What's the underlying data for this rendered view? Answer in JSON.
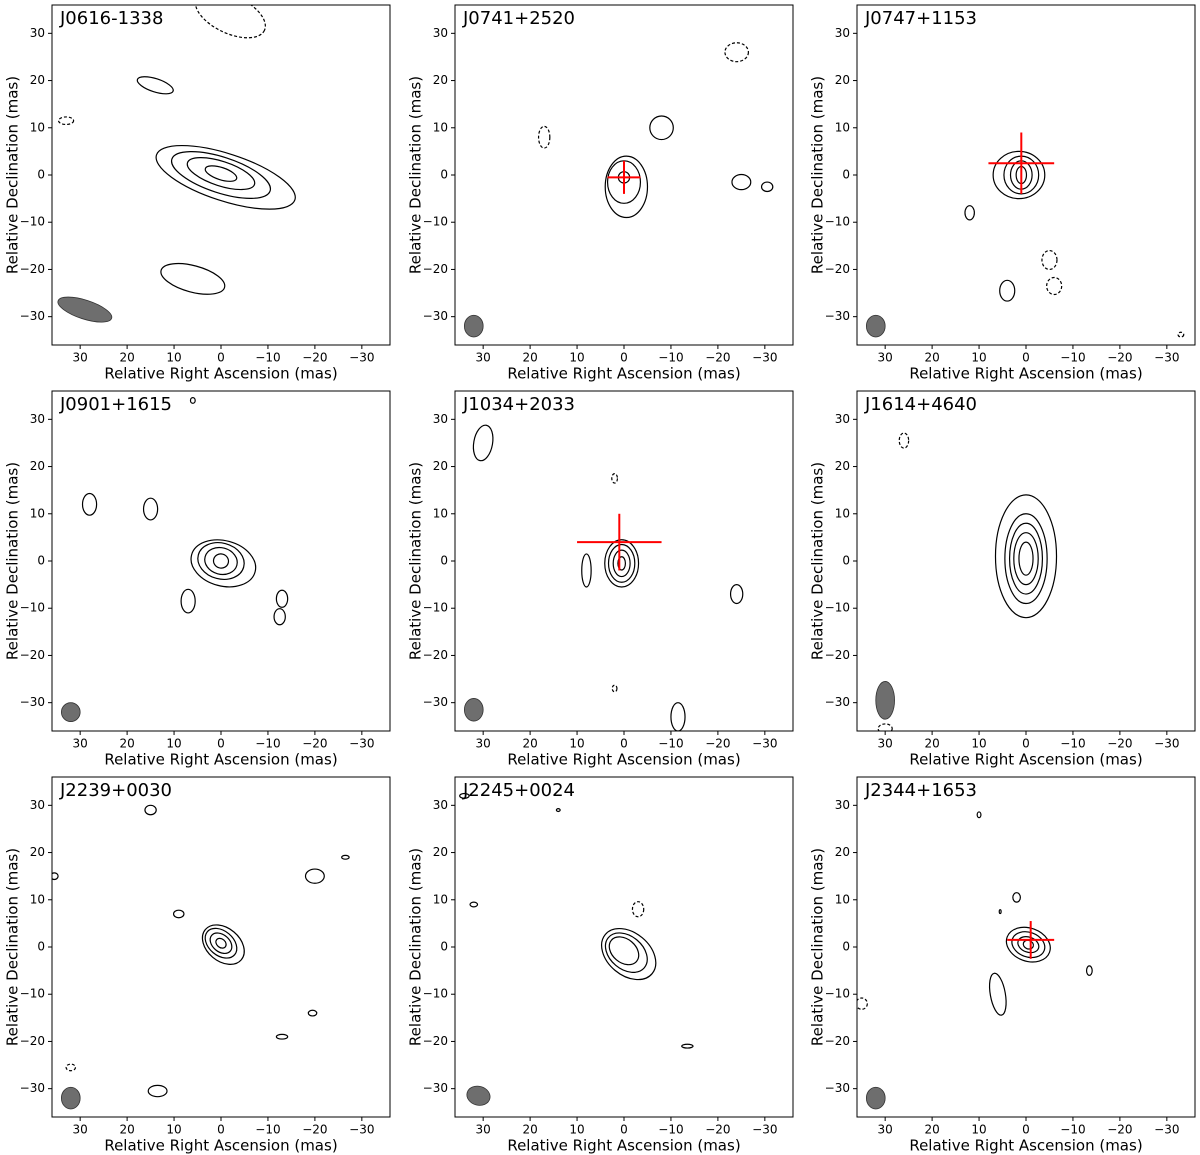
{
  "chart_data": [
    {
      "type": "contour",
      "title": "J0616-1338",
      "xlabel": "Relative Right Ascension (mas)",
      "ylabel": "Relative Declination (mas)",
      "xlim": [
        36,
        -36
      ],
      "ylim": [
        -36,
        36
      ],
      "xticks": [
        30,
        20,
        10,
        0,
        {
          "value": -10,
          "label": "−10"
        },
        {
          "value": -20,
          "label": "−20"
        },
        {
          "value": -30,
          "label": "−30"
        }
      ],
      "yticks": [
        {
          "value": -30,
          "label": "−30"
        },
        {
          "value": -20,
          "label": "−20"
        },
        {
          "value": -10,
          "label": "−10"
        },
        0,
        10,
        20,
        30
      ],
      "color": "#000000",
      "contours": [
        {
          "ra": -1,
          "dec": -0.5,
          "rx": 15.5,
          "ry": 5,
          "angle": 18
        },
        {
          "ra": 0,
          "dec": 0,
          "rx": 11,
          "ry": 3.8,
          "angle": 18
        },
        {
          "ra": 0,
          "dec": 0.3,
          "rx": 7.5,
          "ry": 2.6,
          "angle": 18
        },
        {
          "ra": 0,
          "dec": 0.3,
          "rx": 3.5,
          "ry": 1.3,
          "angle": 18
        },
        {
          "ra": 14,
          "dec": 19,
          "rx": 4,
          "ry": 1.4,
          "angle": 18
        },
        {
          "ra": 6,
          "dec": -22,
          "rx": 7,
          "ry": 2.8,
          "angle": 15
        },
        {
          "ra": 33,
          "dec": 11.5,
          "rx": 1.6,
          "ry": 0.8,
          "dashed": true
        },
        {
          "ra": -2,
          "dec": 34,
          "rx": 8,
          "ry": 4,
          "angle": 25,
          "dashed": true
        }
      ],
      "beam": {
        "ra": 29,
        "dec": -28.5,
        "rx": 6,
        "ry": 2,
        "angle": 18,
        "color": "#6e6e6e"
      }
    },
    {
      "type": "contour",
      "title": "J0741+2520",
      "xlabel": "Relative Right Ascension (mas)",
      "ylabel": "Relative Declination (mas)",
      "xlim": [
        36,
        -36
      ],
      "ylim": [
        -36,
        36
      ],
      "xticks": [
        30,
        20,
        10,
        0,
        {
          "value": -10,
          "label": "−10"
        },
        {
          "value": -20,
          "label": "−20"
        },
        {
          "value": -30,
          "label": "−30"
        }
      ],
      "yticks": [
        {
          "value": -30,
          "label": "−30"
        },
        {
          "value": -20,
          "label": "−20"
        },
        {
          "value": -10,
          "label": "−10"
        },
        0,
        10,
        20,
        30
      ],
      "color": "#000000",
      "contours": [
        {
          "ra": -0.5,
          "dec": -2.5,
          "rx": 4.5,
          "ry": 6.5
        },
        {
          "ra": 0,
          "dec": -1.5,
          "rx": 3.5,
          "ry": 4.5
        },
        {
          "ra": 0,
          "dec": -0.5,
          "rx": 1.2,
          "ry": 1.2
        },
        {
          "ra": -8,
          "dec": 10,
          "rx": 2.5,
          "ry": 2.5
        },
        {
          "ra": -25,
          "dec": -1.5,
          "rx": 2,
          "ry": 1.6
        },
        {
          "ra": -30.5,
          "dec": -2.5,
          "rx": 1.2,
          "ry": 1
        },
        {
          "ra": 17,
          "dec": 8,
          "rx": 1.2,
          "ry": 2.3,
          "dashed": true
        },
        {
          "ra": -24,
          "dec": 26,
          "rx": 2.5,
          "ry": 2,
          "dashed": true
        }
      ],
      "beam": {
        "ra": 32,
        "dec": -32,
        "rx": 2,
        "ry": 2.3,
        "color": "#6e6e6e"
      },
      "crosshair": {
        "ra": 0,
        "dec": -0.5,
        "ra_err": 3.5,
        "dec_err": 3.5,
        "color": "#ff0000"
      }
    },
    {
      "type": "contour",
      "title": "J0747+1153",
      "xlabel": "Relative Right Ascension (mas)",
      "ylabel": "Relative Declination (mas)",
      "xlim": [
        36,
        -36
      ],
      "ylim": [
        -36,
        36
      ],
      "xticks": [
        30,
        20,
        10,
        0,
        {
          "value": -10,
          "label": "−10"
        },
        {
          "value": -20,
          "label": "−20"
        },
        {
          "value": -30,
          "label": "−30"
        }
      ],
      "yticks": [
        {
          "value": -30,
          "label": "−30"
        },
        {
          "value": -20,
          "label": "−20"
        },
        {
          "value": -10,
          "label": "−10"
        },
        0,
        10,
        20,
        30
      ],
      "color": "#000000",
      "contours": [
        {
          "ra": 1.5,
          "dec": 0,
          "rx": 5.5,
          "ry": 5
        },
        {
          "ra": 1,
          "dec": 0,
          "rx": 3.7,
          "ry": 4
        },
        {
          "ra": 1,
          "dec": 0,
          "rx": 2.3,
          "ry": 3
        },
        {
          "ra": 1,
          "dec": 0,
          "rx": 1.1,
          "ry": 1.8
        },
        {
          "ra": 12,
          "dec": -8,
          "rx": 1,
          "ry": 1.5
        },
        {
          "ra": 4,
          "dec": -24.5,
          "rx": 1.6,
          "ry": 2.2
        },
        {
          "ra": -5,
          "dec": -18,
          "rx": 1.6,
          "ry": 2,
          "dashed": true
        },
        {
          "ra": -6,
          "dec": -23.5,
          "rx": 1.6,
          "ry": 1.8,
          "dashed": true
        },
        {
          "ra": -33,
          "dec": -33.8,
          "rx": 0.6,
          "ry": 0.5,
          "dashed": true
        }
      ],
      "beam": {
        "ra": 32,
        "dec": -32,
        "rx": 2,
        "ry": 2.3,
        "color": "#6e6e6e"
      },
      "crosshair": {
        "ra": 1,
        "dec": 2.5,
        "ra_err": 7,
        "dec_err": 6.5,
        "color": "#ff0000"
      }
    },
    {
      "type": "contour",
      "title": "J0901+1615",
      "xlabel": "Relative Right Ascension (mas)",
      "ylabel": "Relative Declination (mas)",
      "xlim": [
        36,
        -36
      ],
      "ylim": [
        -36,
        36
      ],
      "xticks": [
        30,
        20,
        10,
        0,
        {
          "value": -10,
          "label": "−10"
        },
        {
          "value": -20,
          "label": "−20"
        },
        {
          "value": -30,
          "label": "−30"
        }
      ],
      "yticks": [
        {
          "value": -30,
          "label": "−30"
        },
        {
          "value": -20,
          "label": "−20"
        },
        {
          "value": -10,
          "label": "−10"
        },
        0,
        10,
        20,
        30
      ],
      "color": "#000000",
      "contours": [
        {
          "ra": -0.5,
          "dec": -0.5,
          "rx": 7,
          "ry": 4.8,
          "angle": 15
        },
        {
          "ra": 0,
          "dec": 0,
          "rx": 5,
          "ry": 3.8,
          "angle": 15
        },
        {
          "ra": 0,
          "dec": 0,
          "rx": 3.5,
          "ry": 2.8,
          "angle": 15
        },
        {
          "ra": 0,
          "dec": 0,
          "rx": 1.6,
          "ry": 1.5,
          "angle": 15
        },
        {
          "ra": 28,
          "dec": 12,
          "rx": 1.5,
          "ry": 2.3
        },
        {
          "ra": 15,
          "dec": 11,
          "rx": 1.5,
          "ry": 2.3
        },
        {
          "ra": 7,
          "dec": -8.5,
          "rx": 1.5,
          "ry": 2.5
        },
        {
          "ra": -13,
          "dec": -8,
          "rx": 1.2,
          "ry": 1.8
        },
        {
          "ra": -12.5,
          "dec": -11.8,
          "rx": 1.2,
          "ry": 1.7
        },
        {
          "ra": 6,
          "dec": 34,
          "rx": 0.5,
          "ry": 0.6
        }
      ],
      "beam": {
        "ra": 32,
        "dec": -32,
        "rx": 2,
        "ry": 2,
        "color": "#6e6e6e"
      }
    },
    {
      "type": "contour",
      "title": "J1034+2033",
      "xlabel": "Relative Right Ascension (mas)",
      "ylabel": "Relative Declination (mas)",
      "xlim": [
        36,
        -36
      ],
      "ylim": [
        -36,
        36
      ],
      "xticks": [
        30,
        20,
        10,
        0,
        {
          "value": -10,
          "label": "−10"
        },
        {
          "value": -20,
          "label": "−20"
        },
        {
          "value": -30,
          "label": "−30"
        }
      ],
      "yticks": [
        {
          "value": -30,
          "label": "−30"
        },
        {
          "value": -20,
          "label": "−20"
        },
        {
          "value": -10,
          "label": "−10"
        },
        0,
        10,
        20,
        30
      ],
      "color": "#000000",
      "contours": [
        {
          "ra": 0.5,
          "dec": -0.5,
          "rx": 3.6,
          "ry": 5
        },
        {
          "ra": 0.5,
          "dec": -0.5,
          "rx": 2.8,
          "ry": 4
        },
        {
          "ra": 0.5,
          "dec": -0.5,
          "rx": 1.8,
          "ry": 2.8
        },
        {
          "ra": 0.5,
          "dec": -0.5,
          "rx": 0.8,
          "ry": 1.4
        },
        {
          "ra": 30,
          "dec": 25,
          "rx": 2,
          "ry": 3.8,
          "angle": 10
        },
        {
          "ra": 8,
          "dec": -2,
          "rx": 1,
          "ry": 3.5
        },
        {
          "ra": -24,
          "dec": -7,
          "rx": 1.3,
          "ry": 2
        },
        {
          "ra": -11.5,
          "dec": -33,
          "rx": 1.5,
          "ry": 3
        },
        {
          "ra": 2,
          "dec": 17.5,
          "rx": 0.6,
          "ry": 1,
          "dashed": true
        },
        {
          "ra": 2,
          "dec": -27,
          "rx": 0.5,
          "ry": 0.7,
          "dashed": true
        }
      ],
      "beam": {
        "ra": 32,
        "dec": -31.5,
        "rx": 2,
        "ry": 2.4,
        "color": "#6e6e6e"
      },
      "crosshair": {
        "ra": 1,
        "dec": 4,
        "ra_err": 9,
        "dec_err": 6,
        "color": "#ff0000"
      }
    },
    {
      "type": "contour",
      "title": "J1614+4640",
      "xlabel": "Relative Right Ascension (mas)",
      "ylabel": "Relative Declination (mas)",
      "xlim": [
        36,
        -36
      ],
      "ylim": [
        -36,
        36
      ],
      "xticks": [
        30,
        20,
        10,
        0,
        {
          "value": -10,
          "label": "−10"
        },
        {
          "value": -20,
          "label": "−20"
        },
        {
          "value": -30,
          "label": "−30"
        }
      ],
      "yticks": [
        {
          "value": -30,
          "label": "−30"
        },
        {
          "value": -20,
          "label": "−20"
        },
        {
          "value": -10,
          "label": "−10"
        },
        0,
        10,
        20,
        30
      ],
      "color": "#000000",
      "contours": [
        {
          "ra": 0,
          "dec": 1,
          "rx": 6.5,
          "ry": 13
        },
        {
          "ra": 0,
          "dec": 0.5,
          "rx": 4.5,
          "ry": 9.5
        },
        {
          "ra": 0,
          "dec": 0.5,
          "rx": 3.5,
          "ry": 7.5
        },
        {
          "ra": 0,
          "dec": 0.5,
          "rx": 2.6,
          "ry": 5.5
        },
        {
          "ra": 0,
          "dec": 0.5,
          "rx": 1.5,
          "ry": 3.5
        },
        {
          "ra": 26,
          "dec": 25.5,
          "rx": 1,
          "ry": 1.6,
          "dashed": true
        },
        {
          "ra": 30,
          "dec": -35.5,
          "rx": 1.5,
          "ry": 1,
          "dashed": true
        }
      ],
      "beam": {
        "ra": 30,
        "dec": -29.5,
        "rx": 2,
        "ry": 4,
        "color": "#6e6e6e"
      }
    },
    {
      "type": "contour",
      "title": "J2239+0030",
      "xlabel": "Relative Right Ascension (mas)",
      "ylabel": "Relative Declination (mas)",
      "xlim": [
        36,
        -36
      ],
      "ylim": [
        -36,
        36
      ],
      "xticks": [
        30,
        20,
        10,
        0,
        {
          "value": -10,
          "label": "−10"
        },
        {
          "value": -20,
          "label": "−20"
        },
        {
          "value": -30,
          "label": "−30"
        }
      ],
      "yticks": [
        {
          "value": -30,
          "label": "−30"
        },
        {
          "value": -20,
          "label": "−20"
        },
        {
          "value": -10,
          "label": "−10"
        },
        0,
        10,
        20,
        30
      ],
      "color": "#000000",
      "contours": [
        {
          "ra": -0.5,
          "dec": 0.5,
          "rx": 5,
          "ry": 3.5,
          "angle": 40
        },
        {
          "ra": 0,
          "dec": 0.8,
          "rx": 3.8,
          "ry": 2.6,
          "angle": 40
        },
        {
          "ra": 0,
          "dec": 0.8,
          "rx": 2.6,
          "ry": 1.8,
          "angle": 40
        },
        {
          "ra": 0,
          "dec": 0.8,
          "rx": 1.2,
          "ry": 0.9,
          "angle": 40
        },
        {
          "ra": 15,
          "dec": 29,
          "rx": 1.2,
          "ry": 1
        },
        {
          "ra": 9,
          "dec": 7,
          "rx": 1.1,
          "ry": 0.8
        },
        {
          "ra": -20,
          "dec": 15,
          "rx": 2,
          "ry": 1.5
        },
        {
          "ra": -26.5,
          "dec": 19,
          "rx": 0.8,
          "ry": 0.4
        },
        {
          "ra": -13,
          "dec": -19,
          "rx": 1.2,
          "ry": 0.5
        },
        {
          "ra": -19.5,
          "dec": -14,
          "rx": 0.9,
          "ry": 0.6
        },
        {
          "ra": 13.5,
          "dec": -30.5,
          "rx": 2,
          "ry": 1.2
        },
        {
          "ra": 35.5,
          "dec": 15,
          "rx": 0.8,
          "ry": 0.7
        },
        {
          "ra": 32,
          "dec": -25.5,
          "rx": 1,
          "ry": 0.7,
          "dashed": true
        }
      ],
      "beam": {
        "ra": 32,
        "dec": -32,
        "rx": 2,
        "ry": 2.3,
        "color": "#6e6e6e"
      }
    },
    {
      "type": "contour",
      "title": "J2245+0024",
      "xlabel": "Relative Right Ascension (mas)",
      "ylabel": "Relative Declination (mas)",
      "xlim": [
        36,
        -36
      ],
      "ylim": [
        -36,
        36
      ],
      "xticks": [
        30,
        20,
        10,
        0,
        {
          "value": -10,
          "label": "−10"
        },
        {
          "value": -20,
          "label": "−20"
        },
        {
          "value": -30,
          "label": "−30"
        }
      ],
      "yticks": [
        {
          "value": -30,
          "label": "−30"
        },
        {
          "value": -20,
          "label": "−20"
        },
        {
          "value": -10,
          "label": "−10"
        },
        0,
        10,
        20,
        30
      ],
      "color": "#000000",
      "contours": [
        {
          "ra": -1,
          "dec": -1.5,
          "rx": 6.5,
          "ry": 4.5,
          "angle": 40
        },
        {
          "ra": -0.5,
          "dec": -1.2,
          "rx": 5,
          "ry": 3.5,
          "angle": 40
        },
        {
          "ra": 0,
          "dec": -0.8,
          "rx": 3.5,
          "ry": 2.5,
          "angle": 40
        },
        {
          "ra": 32,
          "dec": 9,
          "rx": 0.8,
          "ry": 0.5
        },
        {
          "ra": -13.5,
          "dec": -21,
          "rx": 1.2,
          "ry": 0.4
        },
        {
          "ra": 14,
          "dec": 29,
          "rx": 0.4,
          "ry": 0.3
        },
        {
          "ra": 34,
          "dec": 32,
          "rx": 1,
          "ry": 0.5
        },
        {
          "ra": -3,
          "dec": 8,
          "rx": 1.2,
          "ry": 1.6,
          "dashed": true
        }
      ],
      "beam": {
        "ra": 31,
        "dec": -31.5,
        "rx": 2.5,
        "ry": 2,
        "angle": 15,
        "color": "#6e6e6e"
      }
    },
    {
      "type": "contour",
      "title": "J2344+1653",
      "xlabel": "Relative Right Ascension (mas)",
      "ylabel": "Relative Declination (mas)",
      "xlim": [
        36,
        -36
      ],
      "ylim": [
        -36,
        36
      ],
      "xticks": [
        30,
        20,
        10,
        0,
        {
          "value": -10,
          "label": "−10"
        },
        {
          "value": -20,
          "label": "−20"
        },
        {
          "value": -30,
          "label": "−30"
        }
      ],
      "yticks": [
        {
          "value": -30,
          "label": "−30"
        },
        {
          "value": -20,
          "label": "−20"
        },
        {
          "value": -10,
          "label": "−10"
        },
        0,
        10,
        20,
        30
      ],
      "color": "#000000",
      "contours": [
        {
          "ra": -0.5,
          "dec": 0.5,
          "rx": 4.8,
          "ry": 3.5,
          "angle": 20
        },
        {
          "ra": -0.5,
          "dec": 0.5,
          "rx": 3.6,
          "ry": 2.6,
          "angle": 20
        },
        {
          "ra": -0.5,
          "dec": 0.5,
          "rx": 2.3,
          "ry": 1.6,
          "angle": 20
        },
        {
          "ra": -0.5,
          "dec": 0.5,
          "rx": 1.1,
          "ry": 0.9,
          "angle": 20
        },
        {
          "ra": 6,
          "dec": -10,
          "rx": 1.6,
          "ry": 4.5,
          "angle": -10
        },
        {
          "ra": 2,
          "dec": 10.5,
          "rx": 0.8,
          "ry": 1
        },
        {
          "ra": 5.5,
          "dec": 7.5,
          "rx": 0.2,
          "ry": 0.4
        },
        {
          "ra": -13.5,
          "dec": -5,
          "rx": 0.6,
          "ry": 1
        },
        {
          "ra": 10,
          "dec": 28,
          "rx": 0.4,
          "ry": 0.6
        },
        {
          "ra": 35,
          "dec": -12,
          "rx": 1.2,
          "ry": 1.2,
          "dashed": true
        }
      ],
      "beam": {
        "ra": 32,
        "dec": -32,
        "rx": 2,
        "ry": 2.3,
        "color": "#6e6e6e"
      },
      "crosshair": {
        "ra": -1,
        "dec": 1.5,
        "ra_err": 5,
        "dec_err": 4,
        "color": "#ff0000"
      }
    }
  ]
}
